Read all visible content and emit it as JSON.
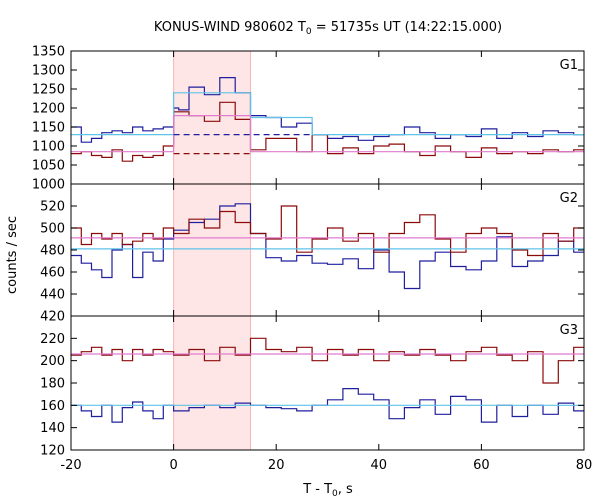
{
  "chart_data": {
    "type": "line",
    "title": "KONUS-WIND 980602 T",
    "title_sub": "0",
    "title_rest": " = 51735s UT (14:22:15.000)",
    "xlabel": "T - T",
    "xlabel_sub": "0",
    "xlabel_rest": ", s",
    "ylabel": "counts / sec",
    "xlim": [
      -20,
      80
    ],
    "x_ticks": [
      -20,
      0,
      20,
      40,
      60,
      80
    ],
    "highlight_interval": [
      0,
      15
    ],
    "colors": {
      "blue": "#1f1f9e",
      "red": "#8b0a0a",
      "light_blue": "#5fc4e8",
      "pink": "#e07bd0",
      "highlight": "#ffe6e6"
    },
    "panels": [
      {
        "label": "G1",
        "ylim": [
          1000,
          1350
        ],
        "y_ticks": [
          1000,
          1050,
          1100,
          1150,
          1200,
          1250,
          1300,
          1350
        ],
        "series": [
          {
            "color": "blue",
            "x": [
              -20,
              -18,
              -16,
              -14,
              -12,
              -10,
              -8,
              -6,
              -4,
              -2,
              0,
              1,
              3,
              6,
              9,
              12,
              15,
              18,
              21,
              24,
              27,
              30,
              33,
              36,
              39,
              42,
              45,
              48,
              51,
              54,
              57,
              60,
              63,
              66,
              69,
              72,
              75,
              78,
              80
            ],
            "values": [
              1150,
              1110,
              1120,
              1135,
              1140,
              1135,
              1150,
              1140,
              1145,
              1150,
              1200,
              1195,
              1255,
              1235,
              1280,
              1240,
              1180,
              1175,
              1150,
              1160,
              1130,
              1120,
              1125,
              1115,
              1125,
              1130,
              1150,
              1135,
              1120,
              1130,
              1125,
              1145,
              1120,
              1135,
              1125,
              1140,
              1135,
              1130,
              1130
            ]
          },
          {
            "color": "red",
            "x": [
              -20,
              -18,
              -16,
              -14,
              -12,
              -10,
              -8,
              -6,
              -4,
              -2,
              0,
              3,
              6,
              9,
              12,
              15,
              18,
              21,
              24,
              27,
              30,
              33,
              36,
              39,
              42,
              45,
              48,
              51,
              54,
              57,
              60,
              63,
              66,
              69,
              72,
              75,
              78,
              80
            ],
            "values": [
              1080,
              1085,
              1075,
              1070,
              1090,
              1060,
              1075,
              1070,
              1075,
              1100,
              1190,
              1180,
              1165,
              1215,
              1170,
              1090,
              1120,
              1120,
              1085,
              1130,
              1080,
              1095,
              1080,
              1100,
              1105,
              1085,
              1075,
              1100,
              1085,
              1070,
              1095,
              1080,
              1085,
              1080,
              1090,
              1085,
              1090,
              1090
            ]
          },
          {
            "color": "light_blue",
            "x": [
              -20,
              0,
              15,
              27,
              80
            ],
            "values": [
              1130,
              1240,
              1175,
              1130,
              1130
            ]
          },
          {
            "color": "pink",
            "x": [
              -20,
              0,
              15,
              80
            ],
            "values": [
              1085,
              1180,
              1085,
              1085
            ]
          }
        ],
        "dashed": [
          {
            "color": "blue",
            "x": [
              0,
              27
            ],
            "value": 1130
          },
          {
            "color": "red",
            "x": [
              0,
              15
            ],
            "value": 1080
          }
        ]
      },
      {
        "label": "G2",
        "ylim": [
          420,
          540
        ],
        "y_ticks": [
          420,
          440,
          460,
          480,
          500,
          520
        ],
        "series": [
          {
            "color": "blue",
            "x": [
              -20,
              -18,
              -16,
              -14,
              -12,
              -10,
              -8,
              -6,
              -4,
              -2,
              0,
              3,
              6,
              9,
              12,
              15,
              18,
              21,
              24,
              27,
              30,
              33,
              36,
              39,
              42,
              45,
              48,
              51,
              54,
              57,
              60,
              63,
              66,
              69,
              72,
              75,
              78,
              80
            ],
            "values": [
              475,
              468,
              462,
              455,
              480,
              485,
              455,
              478,
              470,
              490,
              498,
              505,
              508,
              520,
              522,
              495,
              473,
              470,
              475,
              468,
              467,
              472,
              463,
              480,
              460,
              445,
              470,
              478,
              465,
              462,
              470,
              492,
              465,
              470,
              475,
              488,
              478,
              478
            ]
          },
          {
            "color": "red",
            "x": [
              -20,
              -18,
              -16,
              -14,
              -12,
              -10,
              -8,
              -6,
              -4,
              -2,
              0,
              3,
              6,
              9,
              12,
              15,
              18,
              21,
              24,
              27,
              30,
              33,
              36,
              39,
              42,
              45,
              48,
              51,
              54,
              57,
              60,
              63,
              66,
              69,
              72,
              75,
              78,
              80
            ],
            "values": [
              500,
              485,
              495,
              490,
              495,
              485,
              488,
              495,
              490,
              500,
              495,
              508,
              500,
              515,
              505,
              495,
              490,
              520,
              478,
              490,
              500,
              488,
              495,
              478,
              495,
              505,
              512,
              490,
              478,
              495,
              500,
              495,
              480,
              475,
              495,
              488,
              500,
              500
            ]
          },
          {
            "color": "light_blue",
            "x": [
              -20,
              80
            ],
            "values": [
              481,
              481
            ]
          },
          {
            "color": "pink",
            "x": [
              -20,
              80
            ],
            "values": [
              491,
              491
            ]
          }
        ],
        "dashed": []
      },
      {
        "label": "G3",
        "ylim": [
          120,
          240
        ],
        "y_ticks": [
          120,
          140,
          160,
          180,
          200,
          220
        ],
        "series": [
          {
            "color": "blue",
            "x": [
              -20,
              -18,
              -16,
              -14,
              -12,
              -10,
              -8,
              -6,
              -4,
              -2,
              0,
              3,
              6,
              9,
              12,
              15,
              18,
              21,
              24,
              27,
              30,
              33,
              36,
              39,
              42,
              45,
              48,
              51,
              54,
              57,
              60,
              63,
              66,
              69,
              72,
              75,
              78,
              80
            ],
            "values": [
              160,
              155,
              150,
              160,
              145,
              158,
              163,
              155,
              148,
              160,
              155,
              158,
              160,
              158,
              162,
              160,
              158,
              157,
              155,
              160,
              165,
              175,
              170,
              165,
              148,
              158,
              165,
              152,
              168,
              165,
              145,
              160,
              150,
              160,
              152,
              162,
              155,
              155
            ]
          },
          {
            "color": "red",
            "x": [
              -20,
              -18,
              -16,
              -14,
              -12,
              -10,
              -8,
              -6,
              -4,
              -2,
              0,
              3,
              6,
              9,
              12,
              15,
              18,
              21,
              24,
              27,
              30,
              33,
              36,
              39,
              42,
              45,
              48,
              51,
              54,
              57,
              60,
              63,
              66,
              69,
              72,
              75,
              78,
              80
            ],
            "values": [
              205,
              208,
              212,
              205,
              210,
              200,
              210,
              205,
              210,
              208,
              205,
              210,
              200,
              212,
              205,
              220,
              210,
              208,
              212,
              200,
              210,
              205,
              210,
              200,
              208,
              205,
              210,
              205,
              200,
              208,
              212,
              205,
              200,
              208,
              180,
              200,
              212,
              212
            ]
          },
          {
            "color": "light_blue",
            "x": [
              -20,
              80
            ],
            "values": [
              160,
              160
            ]
          },
          {
            "color": "pink",
            "x": [
              -20,
              80
            ],
            "values": [
              206,
              206
            ]
          }
        ],
        "dashed": []
      }
    ]
  }
}
